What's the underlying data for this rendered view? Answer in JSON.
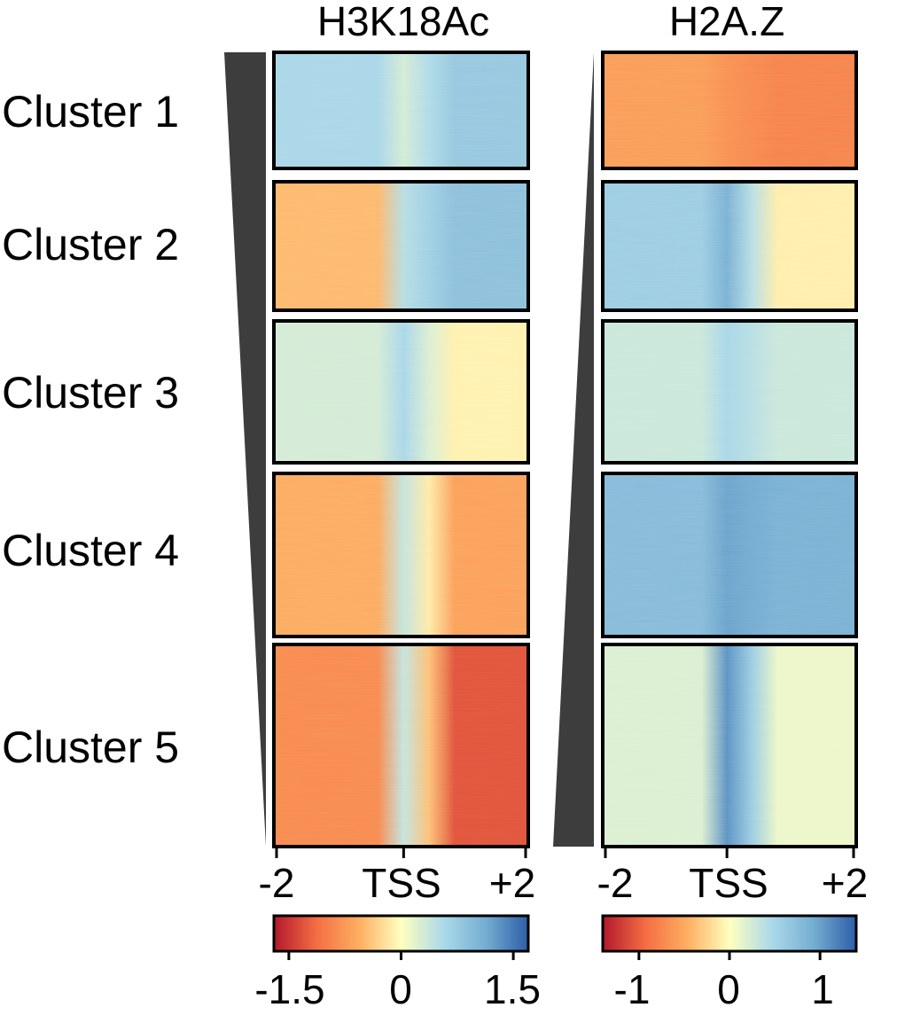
{
  "chart_data": {
    "type": "heatmap",
    "panels": [
      {
        "title": "H3K18Ac",
        "x_tick_labels": [
          "-2",
          "TSS",
          "+2"
        ],
        "colorbar": {
          "ticks": [
            "-1.5",
            "0",
            "1.5"
          ],
          "range": [
            -1.7,
            1.7
          ],
          "colors": [
            "#b2182b",
            "#f46d43",
            "#fdae61",
            "#ffffbf",
            "#abd9e9",
            "#74add1",
            "#2c5ea8"
          ]
        },
        "clusters": [
          {
            "label": "Cluster 1",
            "left": 0.6,
            "tss": 0.3,
            "right": 0.8
          },
          {
            "label": "Cluster 2",
            "left": -0.5,
            "tss": 0.5,
            "right": 0.9
          },
          {
            "label": "Cluster 3",
            "left": 0.3,
            "tss": 0.6,
            "right": -0.1
          },
          {
            "label": "Cluster 4",
            "left": -0.6,
            "tss": 0.4,
            "right": -0.7
          },
          {
            "label": "Cluster 5",
            "left": -0.9,
            "tss": 0.4,
            "right": -1.3
          }
        ]
      },
      {
        "title": "H2A.Z",
        "x_tick_labels": [
          "-2",
          "TSS",
          "+2"
        ],
        "colorbar": {
          "ticks": [
            "-1",
            "0",
            "1"
          ],
          "range": [
            -1.4,
            1.4
          ],
          "colors": [
            "#b2182b",
            "#f46d43",
            "#fdae61",
            "#ffffbf",
            "#abd9e9",
            "#74add1",
            "#2c5ea8"
          ]
        },
        "clusters": [
          {
            "label": "Cluster 1",
            "left": -0.6,
            "tss": -0.7,
            "right": -0.8
          },
          {
            "label": "Cluster 2",
            "left": 0.6,
            "tss": 0.9,
            "right": -0.1
          },
          {
            "label": "Cluster 3",
            "left": 0.3,
            "tss": 0.5,
            "right": 0.3
          },
          {
            "label": "Cluster 4",
            "left": 0.8,
            "tss": 1.0,
            "right": 0.9
          },
          {
            "label": "Cluster 5",
            "left": 0.2,
            "tss": 1.1,
            "right": 0.1
          }
        ]
      }
    ],
    "row_labels": [
      "Cluster 1",
      "Cluster 2",
      "Cluster 3",
      "Cluster 4",
      "Cluster 5"
    ],
    "grid": false
  },
  "colors": {
    "wedge": "#3d3d3d",
    "frame": "#000000"
  }
}
